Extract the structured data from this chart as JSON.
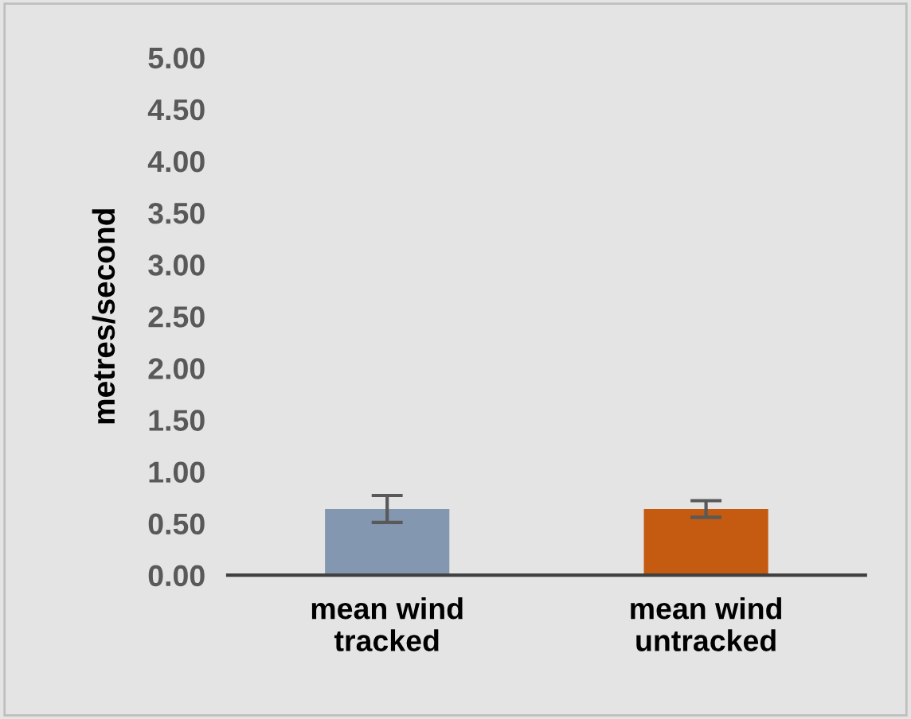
{
  "chart_data": {
    "type": "bar",
    "ylabel": "metres/second",
    "categories": [
      "mean wind\ntracked",
      "mean wind\nuntracked"
    ],
    "values": [
      0.64,
      0.64
    ],
    "colors": [
      "#8497b0",
      "#c55a11"
    ],
    "errors": [
      0.13,
      0.08
    ],
    "ylim": [
      0,
      5
    ],
    "yticks": [
      {
        "value": 0,
        "label": "0.00"
      },
      {
        "value": 0.5,
        "label": "0.50"
      },
      {
        "value": 1,
        "label": "1.00"
      },
      {
        "value": 1.5,
        "label": "1.50"
      },
      {
        "value": 2,
        "label": "2.00"
      },
      {
        "value": 2.5,
        "label": "2.50"
      },
      {
        "value": 3,
        "label": "3.00"
      },
      {
        "value": 3.5,
        "label": "3.50"
      },
      {
        "value": 4,
        "label": "4.00"
      },
      {
        "value": 4.5,
        "label": "4.50"
      },
      {
        "value": 5,
        "label": "5.00"
      }
    ],
    "grid": false
  }
}
